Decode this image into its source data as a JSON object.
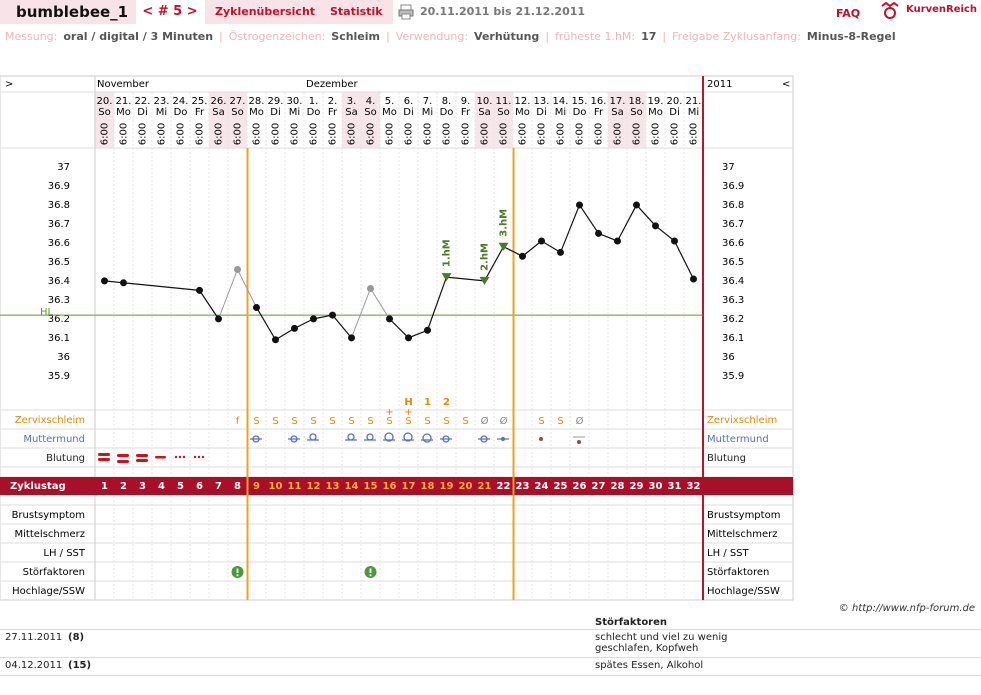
{
  "header": {
    "user": "bumblebee_1",
    "cycle_nav": "< # 5 >",
    "tabs": [
      "Zyklenübersicht",
      "Statistik"
    ],
    "period": "20.11.2011 bis 21.12.2011",
    "faq": "FAQ",
    "logo": "KurvenReich"
  },
  "info_separator": "|",
  "info": [
    {
      "label": "Messung:",
      "value": "oral / digital / 3 Minuten"
    },
    {
      "label": "Östrogenzeichen:",
      "value": "Schleim"
    },
    {
      "label": "Verwendung:",
      "value": "Verhütung"
    },
    {
      "label": "früheste 1.hM:",
      "value": "17"
    },
    {
      "label": "Freigabe Zyklusanfang:",
      "value": "Minus-8-Regel"
    }
  ],
  "chart": {
    "nav_left": ">",
    "nav_right": "<",
    "year": "2011",
    "months": [
      "November",
      "Dezember"
    ],
    "dates": [
      "20.",
      "21.",
      "22.",
      "23.",
      "24.",
      "25.",
      "26.",
      "27.",
      "28.",
      "29.",
      "30.",
      "1.",
      "2.",
      "3.",
      "4.",
      "5.",
      "6.",
      "7.",
      "8.",
      "9.",
      "10.",
      "11.",
      "12.",
      "13.",
      "14.",
      "15.",
      "16.",
      "17.",
      "18.",
      "19.",
      "20.",
      "21."
    ],
    "weekdays": [
      "So",
      "Mo",
      "Di",
      "Mi",
      "Do",
      "Fr",
      "Sa",
      "So",
      "Mo",
      "Di",
      "Mi",
      "Do",
      "Fr",
      "Sa",
      "So",
      "Mo",
      "Di",
      "Mi",
      "Do",
      "Fr",
      "Sa",
      "So",
      "Mo",
      "Di",
      "Mi",
      "Do",
      "Fr",
      "Sa",
      "So",
      "Mo",
      "Di",
      "Mi"
    ],
    "times": [
      "6:00",
      "6:00",
      "6:00",
      "6:00",
      "6:00",
      "6:00",
      "6:00",
      "6:00",
      "6:00",
      "6:00",
      "6:00",
      "6:00",
      "6:00",
      "6:00",
      "6:00",
      "6:00",
      "6:00",
      "6:00",
      "6:00",
      "6:00",
      "6:00",
      "6:00",
      "6:00",
      "6:00",
      "6:00",
      "6:00",
      "6:00",
      "6:00",
      "6:00",
      "6:00",
      "6:00",
      "6:00"
    ],
    "cycle_days": [
      1,
      2,
      3,
      4,
      5,
      6,
      7,
      8,
      9,
      10,
      11,
      12,
      13,
      14,
      15,
      16,
      17,
      18,
      19,
      20,
      21,
      22,
      23,
      24,
      25,
      26,
      27,
      28,
      29,
      30,
      31,
      32
    ],
    "temperatures": [
      36.4,
      36.39,
      null,
      null,
      null,
      36.35,
      36.2,
      null,
      36.26,
      36.09,
      36.15,
      36.2,
      36.22,
      36.1,
      null,
      36.2,
      36.1,
      36.14,
      36.42,
      null,
      36.4,
      36.58,
      36.53,
      36.61,
      36.55,
      36.8,
      36.65,
      36.61,
      36.8,
      36.69,
      36.61,
      36.41
    ],
    "excluded": [
      null,
      null,
      null,
      null,
      null,
      null,
      null,
      36.46,
      null,
      null,
      null,
      null,
      null,
      null,
      36.36,
      null,
      null,
      null,
      null,
      null,
      null,
      null,
      null,
      null,
      null,
      null,
      null,
      null,
      null,
      null,
      null,
      null
    ],
    "hm": [
      null,
      null,
      null,
      null,
      null,
      null,
      null,
      null,
      null,
      null,
      null,
      null,
      null,
      null,
      null,
      null,
      null,
      null,
      "1.hM",
      null,
      "2.hM",
      "3.hM",
      null,
      null,
      null,
      null,
      null,
      null,
      null,
      null,
      null,
      null
    ],
    "ylim": [
      35.72,
      37.1
    ],
    "yticks": [
      37,
      36.9,
      36.8,
      36.7,
      36.6,
      36.5,
      36.4,
      36.3,
      36.2,
      36.1,
      36,
      35.9
    ],
    "cover_line": {
      "label": "HL",
      "value": 36.22
    },
    "fertile_window": [
      9,
      22
    ],
    "mucus": [
      null,
      null,
      null,
      null,
      null,
      null,
      null,
      "f",
      "S",
      "S",
      "S",
      "S",
      "S",
      "S",
      "S",
      "S",
      "S",
      "S",
      "S",
      "S",
      "Ø",
      "Ø",
      null,
      "S",
      "S",
      "Ø",
      null,
      null,
      null,
      null,
      null,
      null
    ],
    "mucus_plus": [
      null,
      null,
      null,
      null,
      null,
      null,
      null,
      null,
      null,
      null,
      null,
      null,
      null,
      null,
      null,
      "+",
      "+",
      null,
      null,
      null,
      null,
      null,
      null,
      null,
      null,
      null,
      null,
      null,
      null,
      null,
      null,
      null
    ],
    "peak": [
      null,
      null,
      null,
      null,
      null,
      null,
      null,
      null,
      null,
      null,
      null,
      null,
      null,
      null,
      null,
      null,
      "H",
      "1",
      "2",
      null,
      null,
      null,
      null,
      null,
      null,
      null,
      null,
      null,
      null,
      null,
      null,
      null
    ],
    "row_labels": [
      "Zervixschleim",
      "Muttermund",
      "Blutung"
    ],
    "cycle_label": "Zyklustag",
    "lower_rows": [
      "Brustsymptom",
      "Mittelschmerz",
      "LH / SST",
      "Störfaktoren",
      "Hochlage/SSW"
    ],
    "disturbance_days": [
      8,
      15
    ]
  },
  "copyright": "© http://www.nfp-forum.de",
  "notes": {
    "title": "Störfaktoren",
    "rows": [
      {
        "date": "27.11.2011",
        "day": "(8)",
        "text": "schlecht und viel zu wenig geschlafen, Kopfweh"
      },
      {
        "date": "04.12.2011",
        "day": "(15)",
        "text": "spätes Essen, Alkohol"
      }
    ]
  }
}
